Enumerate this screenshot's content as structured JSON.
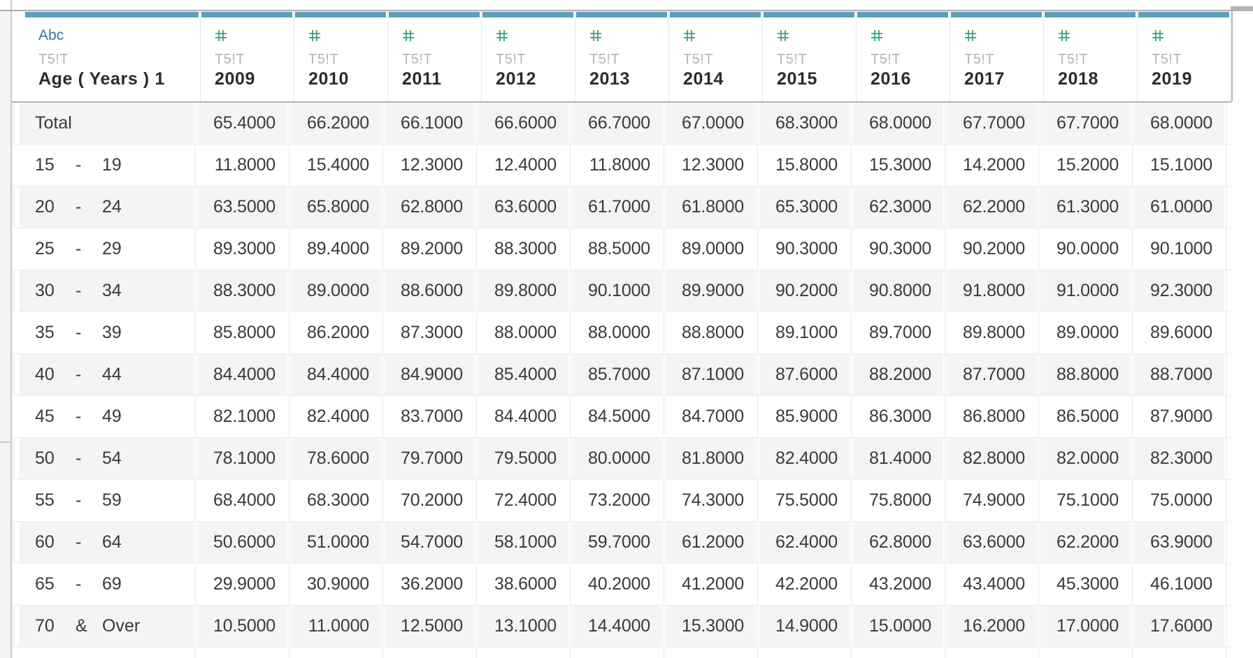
{
  "header": {
    "age_column": {
      "type_label": "Abc",
      "source": "T5!T",
      "name": "Age ( Years ) 1"
    },
    "year_columns": [
      {
        "source": "T5!T",
        "name": "2009"
      },
      {
        "source": "T5!T",
        "name": "2010"
      },
      {
        "source": "T5!T",
        "name": "2011"
      },
      {
        "source": "T5!T",
        "name": "2012"
      },
      {
        "source": "T5!T",
        "name": "2013"
      },
      {
        "source": "T5!T",
        "name": "2014"
      },
      {
        "source": "T5!T",
        "name": "2015"
      },
      {
        "source": "T5!T",
        "name": "2016"
      },
      {
        "source": "T5!T",
        "name": "2017"
      },
      {
        "source": "T5!T",
        "name": "2018"
      },
      {
        "source": "T5!T",
        "name": "2019"
      }
    ]
  },
  "rows": [
    {
      "label": [
        "Total",
        "",
        ""
      ],
      "values": [
        "65.4000",
        "66.2000",
        "66.1000",
        "66.6000",
        "66.7000",
        "67.0000",
        "68.3000",
        "68.0000",
        "67.7000",
        "67.7000",
        "68.0000"
      ]
    },
    {
      "label": [
        "15",
        "-",
        "19"
      ],
      "values": [
        "11.8000",
        "15.4000",
        "12.3000",
        "12.4000",
        "11.8000",
        "12.3000",
        "15.8000",
        "15.3000",
        "14.2000",
        "15.2000",
        "15.1000"
      ]
    },
    {
      "label": [
        "20",
        "-",
        "24"
      ],
      "values": [
        "63.5000",
        "65.8000",
        "62.8000",
        "63.6000",
        "61.7000",
        "61.8000",
        "65.3000",
        "62.3000",
        "62.2000",
        "61.3000",
        "61.0000"
      ]
    },
    {
      "label": [
        "25",
        "-",
        "29"
      ],
      "values": [
        "89.3000",
        "89.4000",
        "89.2000",
        "88.3000",
        "88.5000",
        "89.0000",
        "90.3000",
        "90.3000",
        "90.2000",
        "90.0000",
        "90.1000"
      ]
    },
    {
      "label": [
        "30",
        "-",
        "34"
      ],
      "values": [
        "88.3000",
        "89.0000",
        "88.6000",
        "89.8000",
        "90.1000",
        "89.9000",
        "90.2000",
        "90.8000",
        "91.8000",
        "91.0000",
        "92.3000"
      ]
    },
    {
      "label": [
        "35",
        "-",
        "39"
      ],
      "values": [
        "85.8000",
        "86.2000",
        "87.3000",
        "88.0000",
        "88.0000",
        "88.8000",
        "89.1000",
        "89.7000",
        "89.8000",
        "89.0000",
        "89.6000"
      ]
    },
    {
      "label": [
        "40",
        "-",
        "44"
      ],
      "values": [
        "84.4000",
        "84.4000",
        "84.9000",
        "85.4000",
        "85.7000",
        "87.1000",
        "87.6000",
        "88.2000",
        "87.7000",
        "88.8000",
        "88.7000"
      ]
    },
    {
      "label": [
        "45",
        "-",
        "49"
      ],
      "values": [
        "82.1000",
        "82.4000",
        "83.7000",
        "84.4000",
        "84.5000",
        "84.7000",
        "85.9000",
        "86.3000",
        "86.8000",
        "86.5000",
        "87.9000"
      ]
    },
    {
      "label": [
        "50",
        "-",
        "54"
      ],
      "values": [
        "78.1000",
        "78.6000",
        "79.7000",
        "79.5000",
        "80.0000",
        "81.8000",
        "82.4000",
        "81.4000",
        "82.8000",
        "82.0000",
        "82.3000"
      ]
    },
    {
      "label": [
        "55",
        "-",
        "59"
      ],
      "values": [
        "68.4000",
        "68.3000",
        "70.2000",
        "72.4000",
        "73.2000",
        "74.3000",
        "75.5000",
        "75.8000",
        "74.9000",
        "75.1000",
        "75.0000"
      ]
    },
    {
      "label": [
        "60",
        "-",
        "64"
      ],
      "values": [
        "50.6000",
        "51.0000",
        "54.7000",
        "58.1000",
        "59.7000",
        "61.2000",
        "62.4000",
        "62.8000",
        "63.6000",
        "62.2000",
        "63.9000"
      ]
    },
    {
      "label": [
        "65",
        "-",
        "69"
      ],
      "values": [
        "29.9000",
        "30.9000",
        "36.2000",
        "38.6000",
        "40.2000",
        "41.2000",
        "42.2000",
        "43.2000",
        "43.4000",
        "45.3000",
        "46.1000"
      ]
    },
    {
      "label": [
        "70",
        "&",
        "Over"
      ],
      "values": [
        "10.5000",
        "11.0000",
        "12.5000",
        "13.1000",
        "14.4000",
        "15.3000",
        "14.9000",
        "15.0000",
        "16.2000",
        "17.0000",
        "17.6000"
      ]
    }
  ],
  "colors": {
    "header_accent_bar": "#5ba0c0",
    "string_type_blue": "#30789f",
    "numeric_type_green": "#3aa183",
    "source_label_gray": "#b4b4b4",
    "row_band": "#f4f4f4",
    "grid_line": "#e9e9e9",
    "header_border": "#b2b2b2",
    "cell_text": "#3a3a3a"
  }
}
